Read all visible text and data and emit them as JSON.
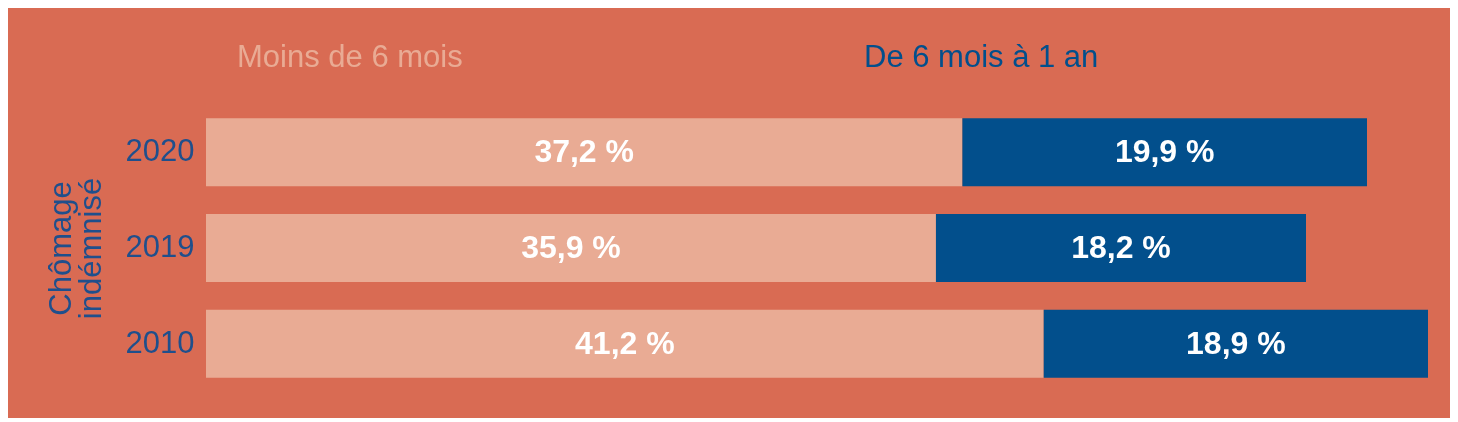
{
  "chart_data": {
    "type": "bar",
    "orientation": "horizontal",
    "stacked": true,
    "ylabel": "Chômage indémnisé",
    "categories": [
      "2020",
      "2019",
      "2010"
    ],
    "series": [
      {
        "name": "Moins de 6 mois",
        "color": "#e9ab94",
        "values": [
          37.2,
          35.9,
          41.2
        ],
        "value_labels": [
          "37,2 %",
          "35,9 %",
          "41,2 %"
        ]
      },
      {
        "name": "De 6 mois à 1 an",
        "color": "#024f8c",
        "values": [
          19.9,
          18.2,
          18.9
        ],
        "value_labels": [
          "19,9 %",
          "18,2 %",
          "18,9 %"
        ]
      }
    ],
    "legend": "top left"
  }
}
